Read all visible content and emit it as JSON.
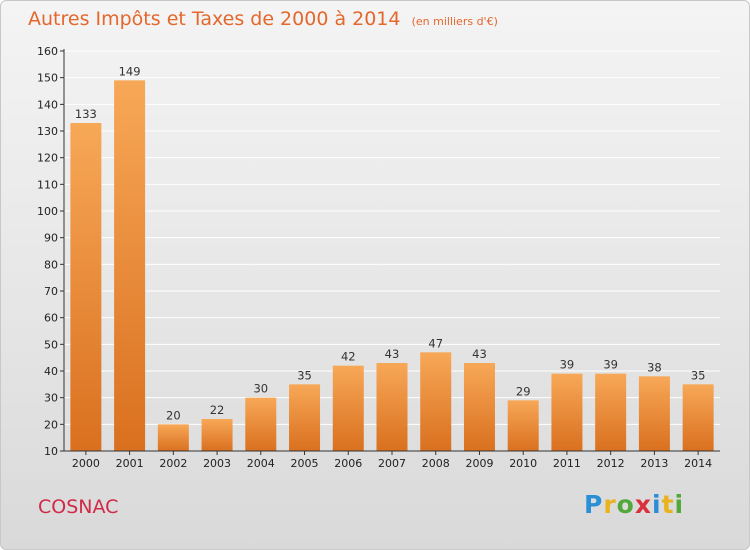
{
  "title": {
    "main": "Autres Impôts et Taxes de 2000 à 2014",
    "unit": "(en milliers d'€)"
  },
  "commune": "COSNAC",
  "logo": {
    "letters": [
      "P",
      "r",
      "o",
      "x",
      "i",
      "t",
      "i"
    ],
    "colors": [
      "#2a8fd6",
      "#e9b21f",
      "#53a83b",
      "#d8313a",
      "#2a8fd6",
      "#e9b21f",
      "#53a83b"
    ]
  },
  "colors": {
    "bar_light": "#f7a857",
    "bar_dark": "#d9701f",
    "axis": "#333333",
    "grid": "#ffffff"
  },
  "chart_data": {
    "type": "bar",
    "categories": [
      "2000",
      "2001",
      "2002",
      "2003",
      "2004",
      "2005",
      "2006",
      "2007",
      "2008",
      "2009",
      "2010",
      "2011",
      "2012",
      "2013",
      "2014"
    ],
    "values": [
      133,
      149,
      20,
      22,
      30,
      35,
      42,
      43,
      47,
      43,
      29,
      39,
      39,
      38,
      35
    ],
    "title": "Autres Impôts et Taxes de 2000 à 2014",
    "xlabel": "",
    "ylabel": "",
    "ylim": [
      10,
      160
    ],
    "yticks": [
      10,
      20,
      30,
      40,
      50,
      60,
      70,
      80,
      90,
      100,
      110,
      120,
      130,
      140,
      150,
      160
    ],
    "grid": true
  }
}
